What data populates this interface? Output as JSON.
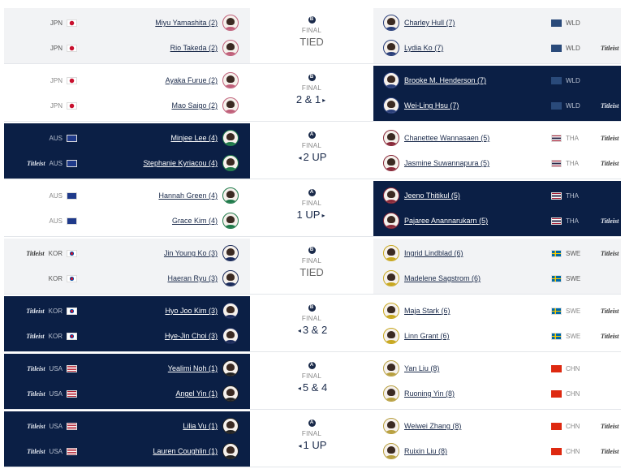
{
  "colors": {
    "winner_bg": "#0b1f45",
    "tied_bg": "#f2f3f5",
    "text": "#1a2a4a"
  },
  "final_label": "FINAL",
  "titleist_label": "Titleist",
  "matches": [
    {
      "pool": "B",
      "score": "TIED",
      "winner": "none",
      "left": [
        {
          "name": "Miyu Yamashita (2)",
          "country": "JPN",
          "titleist": false,
          "color": "#c0607a"
        },
        {
          "name": "Rio Takeda (2)",
          "country": "JPN",
          "titleist": false,
          "color": "#c0607a"
        }
      ],
      "right": [
        {
          "name": "Charley Hull (7)",
          "country": "WLD",
          "titleist": false,
          "color": "#2a3f7a"
        },
        {
          "name": "Lydia Ko (7)",
          "country": "WLD",
          "titleist": true,
          "color": "#2a3f7a"
        }
      ]
    },
    {
      "pool": "B",
      "score": "2 & 1",
      "winner": "right",
      "left": [
        {
          "name": "Ayaka Furue (2)",
          "country": "JPN",
          "titleist": false,
          "color": "#c0607a"
        },
        {
          "name": "Mao Saigo (2)",
          "country": "JPN",
          "titleist": false,
          "color": "#c0607a"
        }
      ],
      "right": [
        {
          "name": "Brooke M. Henderson (7)",
          "country": "WLD",
          "titleist": false,
          "color": "#2a3f7a"
        },
        {
          "name": "Wei-Ling Hsu (7)",
          "country": "WLD",
          "titleist": true,
          "color": "#2a3f7a"
        }
      ]
    },
    {
      "pool": "A",
      "score": "2 UP",
      "winner": "left",
      "left": [
        {
          "name": "Minjee Lee (4)",
          "country": "AUS",
          "titleist": false,
          "color": "#1e7a4a"
        },
        {
          "name": "Stephanie Kyriacou (4)",
          "country": "AUS",
          "titleist": true,
          "color": "#1e7a4a"
        }
      ],
      "right": [
        {
          "name": "Chanettee Wannasaen (5)",
          "country": "THA",
          "titleist": true,
          "color": "#8a2a3a"
        },
        {
          "name": "Jasmine Suwannapura (5)",
          "country": "THA",
          "titleist": true,
          "color": "#8a2a3a"
        }
      ]
    },
    {
      "pool": "A",
      "score": "1 UP",
      "winner": "right",
      "left": [
        {
          "name": "Hannah Green (4)",
          "country": "AUS",
          "titleist": false,
          "color": "#1e7a4a"
        },
        {
          "name": "Grace Kim (4)",
          "country": "AUS",
          "titleist": false,
          "color": "#1e7a4a"
        }
      ],
      "right": [
        {
          "name": "Jeeno Thitikul (5)",
          "country": "THA",
          "titleist": false,
          "color": "#8a2a3a"
        },
        {
          "name": "Pajaree Anannarukarn (5)",
          "country": "THA",
          "titleist": true,
          "color": "#8a2a3a"
        }
      ]
    },
    {
      "pool": "B",
      "score": "TIED",
      "winner": "none",
      "left": [
        {
          "name": "Jin Young Ko (3)",
          "country": "KOR",
          "titleist": true,
          "color": "#1a2a5a"
        },
        {
          "name": "Haeran Ryu (3)",
          "country": "KOR",
          "titleist": false,
          "color": "#1a2a5a"
        }
      ],
      "right": [
        {
          "name": "Ingrid Lindblad (6)",
          "country": "SWE",
          "titleist": true,
          "color": "#c8a820"
        },
        {
          "name": "Madelene Sagstrom (6)",
          "country": "SWE",
          "titleist": false,
          "color": "#c8a820"
        }
      ]
    },
    {
      "pool": "B",
      "score": "3 & 2",
      "winner": "left",
      "left": [
        {
          "name": "Hyo Joo Kim (3)",
          "country": "KOR",
          "titleist": true,
          "color": "#1a2a5a"
        },
        {
          "name": "Hye-Jin Choi (3)",
          "country": "KOR",
          "titleist": true,
          "color": "#1a2a5a"
        }
      ],
      "right": [
        {
          "name": "Maja Stark (6)",
          "country": "SWE",
          "titleist": true,
          "color": "#c8a820"
        },
        {
          "name": "Linn Grant (6)",
          "country": "SWE",
          "titleist": true,
          "color": "#c8a820"
        }
      ]
    },
    {
      "pool": "A",
      "score": "5 & 4",
      "winner": "left",
      "left": [
        {
          "name": "Yealimi Noh (1)",
          "country": "USA",
          "titleist": true,
          "color": "#222"
        },
        {
          "name": "Angel Yin (1)",
          "country": "USA",
          "titleist": true,
          "color": "#222"
        }
      ],
      "right": [
        {
          "name": "Yan Liu (8)",
          "country": "CHN",
          "titleist": false,
          "color": "#b8a040"
        },
        {
          "name": "Ruoning Yin (8)",
          "country": "CHN",
          "titleist": false,
          "color": "#b8a040"
        }
      ]
    },
    {
      "pool": "A",
      "score": "1 UP",
      "winner": "left",
      "left": [
        {
          "name": "Lilia Vu (1)",
          "country": "USA",
          "titleist": true,
          "color": "#222"
        },
        {
          "name": "Lauren Coughlin (1)",
          "country": "USA",
          "titleist": true,
          "color": "#222"
        }
      ],
      "right": [
        {
          "name": "Weiwei Zhang (8)",
          "country": "CHN",
          "titleist": true,
          "color": "#b8a040"
        },
        {
          "name": "Ruixin Liu (8)",
          "country": "CHN",
          "titleist": true,
          "color": "#b8a040"
        }
      ]
    }
  ]
}
